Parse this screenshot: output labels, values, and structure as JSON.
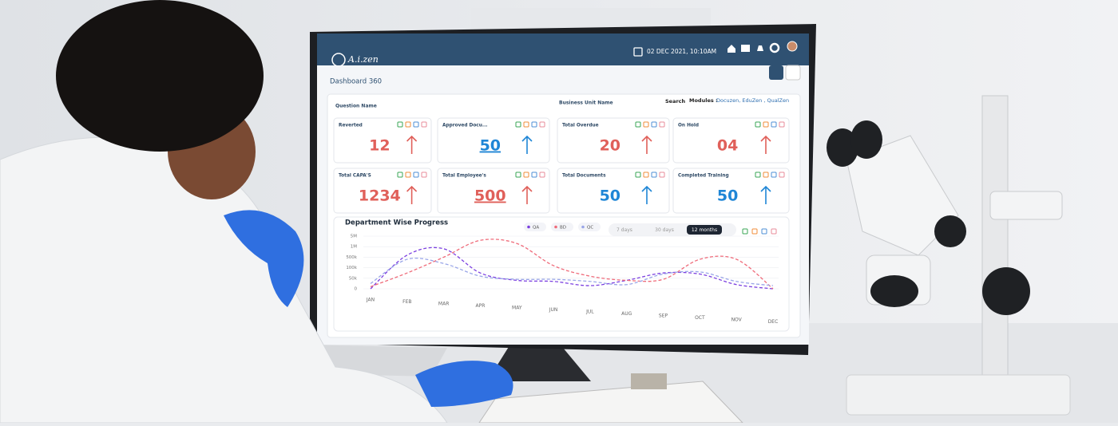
{
  "header": {
    "logo": "A.i.zen",
    "datetime": "02 DEC 2021, 10:10AM"
  },
  "page_title": "Dashboard 360",
  "filters": {
    "question": "Question Name",
    "business_unit": "Business Unit Name",
    "search": "Search",
    "modules_label": "Modules :",
    "modules": "Docuzen, EduZen , QualZen"
  },
  "cards": [
    {
      "title": "Reverted",
      "value": "12",
      "color": "#e0605a",
      "underline": false
    },
    {
      "title": "Approved Docu...",
      "value": "50",
      "color": "#1f86d6",
      "underline": true
    },
    {
      "title": "Total Overdue",
      "value": "20",
      "color": "#e0605a",
      "underline": false
    },
    {
      "title": "On Hold",
      "value": "04",
      "color": "#e0605a",
      "underline": false
    },
    {
      "title": "Total CAPA'S",
      "value": "1234",
      "color": "#e0605a",
      "underline": false
    },
    {
      "title": "Total Employee's",
      "value": "500",
      "color": "#e0605a",
      "underline": true
    },
    {
      "title": "Total Documents",
      "value": "50",
      "color": "#1f86d6",
      "underline": false
    },
    {
      "title": "Completed Training",
      "value": "50",
      "color": "#1f86d6",
      "underline": false
    }
  ],
  "chart": {
    "type": "line",
    "title": "Department Wise Progress",
    "ranges": [
      "7 days",
      "30 days",
      "12 months"
    ],
    "selected_range": 2,
    "categories": [
      "JAN",
      "FEB",
      "MAR",
      "APR",
      "MAY",
      "JUN",
      "JUL",
      "AUG",
      "SEP",
      "OCT",
      "NOV",
      "DEC"
    ],
    "ylim": [
      0,
      5000000
    ],
    "yticks": [
      {
        "value": 0,
        "label": "0"
      },
      {
        "value": 50000,
        "label": "50k"
      },
      {
        "value": 100000,
        "label": "100k"
      },
      {
        "value": 500000,
        "label": "500k"
      },
      {
        "value": 1000000,
        "label": "1M"
      },
      {
        "value": 5000000,
        "label": "5M"
      }
    ],
    "series": [
      {
        "name": "QA",
        "color": "#7b3fe0",
        "values": [
          0,
          600000,
          900000,
          75000,
          40000,
          35000,
          15000,
          40000,
          75000,
          70000,
          20000,
          0
        ]
      },
      {
        "name": "BD",
        "color": "#ef6b7a",
        "values": [
          10000,
          75000,
          500000,
          3400000,
          2200000,
          180000,
          60000,
          40000,
          45000,
          420000,
          420000,
          0
        ]
      },
      {
        "name": "QC",
        "color": "#9aa6e8",
        "values": [
          25000,
          420000,
          260000,
          60000,
          45000,
          45000,
          35000,
          20000,
          70000,
          80000,
          35000,
          15000
        ]
      }
    ]
  }
}
